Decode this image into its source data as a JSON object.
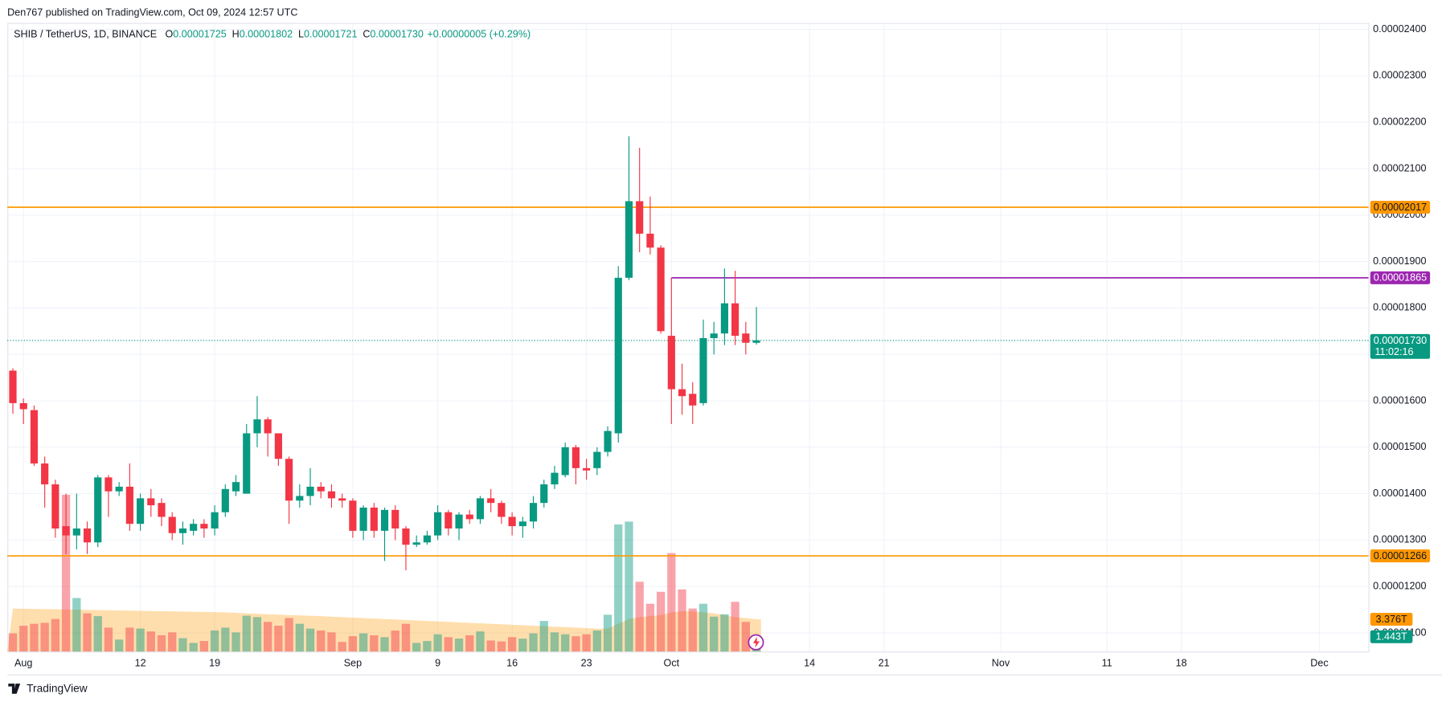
{
  "header": {
    "published": "Den767 published on TradingView.com, Oct 09, 2024 12:57 UTC"
  },
  "footer": {
    "brand": "TradingView"
  },
  "chart_data": {
    "type": "candlestick",
    "symbol": "SHIB / TetherUS, 1D, BINANCE",
    "legend": [
      {
        "key": "O",
        "value": "0.00001725"
      },
      {
        "key": "H",
        "value": "0.00001802"
      },
      {
        "key": "L",
        "value": "0.00001721"
      },
      {
        "key": "C",
        "value": "0.00001730"
      }
    ],
    "change": "+0.00000005 (+0.29%)",
    "up_color": "#089981",
    "down_color": "#f23645",
    "x": [
      "07-31",
      "08-01",
      "08-02",
      "08-03",
      "08-04",
      "08-05",
      "08-06",
      "08-07",
      "08-08",
      "08-09",
      "08-10",
      "08-11",
      "08-12",
      "08-13",
      "08-14",
      "08-15",
      "08-16",
      "08-17",
      "08-18",
      "08-19",
      "08-20",
      "08-21",
      "08-22",
      "08-23",
      "08-24",
      "08-25",
      "08-26",
      "08-27",
      "08-28",
      "08-29",
      "08-30",
      "08-31",
      "09-01",
      "09-02",
      "09-03",
      "09-04",
      "09-05",
      "09-06",
      "09-07",
      "09-08",
      "09-09",
      "09-10",
      "09-11",
      "09-12",
      "09-13",
      "09-14",
      "09-15",
      "09-16",
      "09-17",
      "09-18",
      "09-19",
      "09-20",
      "09-21",
      "09-22",
      "09-23",
      "09-24",
      "09-25",
      "09-26",
      "09-27",
      "09-28",
      "09-29",
      "09-30",
      "10-01",
      "10-02",
      "10-03",
      "10-04",
      "10-05",
      "10-06",
      "10-07",
      "10-08",
      "10-09"
    ],
    "open": [
      1.665e-05,
      1.595e-05,
      1.58e-05,
      1.465e-05,
      1.42e-05,
      1.33e-05,
      1.31e-05,
      1.325e-05,
      1.295e-05,
      1.435e-05,
      1.405e-05,
      1.415e-05,
      1.335e-05,
      1.39e-05,
      1.38e-05,
      1.35e-05,
      1.315e-05,
      1.32e-05,
      1.335e-05,
      1.325e-05,
      1.36e-05,
      1.405e-05,
      1.4e-05,
      1.53e-05,
      1.56e-05,
      1.53e-05,
      1.475e-05,
      1.385e-05,
      1.395e-05,
      1.415e-05,
      1.405e-05,
      1.39e-05,
      1.385e-05,
      1.32e-05,
      1.37e-05,
      1.32e-05,
      1.365e-05,
      1.325e-05,
      1.29e-05,
      1.295e-05,
      1.31e-05,
      1.36e-05,
      1.325e-05,
      1.355e-05,
      1.345e-05,
      1.39e-05,
      1.38e-05,
      1.35e-05,
      1.33e-05,
      1.34e-05,
      1.38e-05,
      1.42e-05,
      1.44e-05,
      1.5e-05,
      1.455e-05,
      1.455e-05,
      1.49e-05,
      1.53e-05,
      1.865e-05,
      2.03e-05,
      1.96e-05,
      1.93e-05,
      1.74e-05,
      1.625e-05,
      1.615e-05,
      1.595e-05,
      1.735e-05,
      1.745e-05,
      1.81e-05,
      1.745e-05,
      1.725e-05
    ],
    "high": [
      1.67e-05,
      1.605e-05,
      1.59e-05,
      1.48e-05,
      1.43e-05,
      1.4e-05,
      1.4e-05,
      1.34e-05,
      1.44e-05,
      1.44e-05,
      1.425e-05,
      1.465e-05,
      1.4e-05,
      1.41e-05,
      1.39e-05,
      1.36e-05,
      1.34e-05,
      1.345e-05,
      1.345e-05,
      1.375e-05,
      1.42e-05,
      1.44e-05,
      1.55e-05,
      1.61e-05,
      1.565e-05,
      1.53e-05,
      1.48e-05,
      1.42e-05,
      1.455e-05,
      1.425e-05,
      1.42e-05,
      1.4e-05,
      1.39e-05,
      1.375e-05,
      1.38e-05,
      1.37e-05,
      1.375e-05,
      1.33e-05,
      1.31e-05,
      1.32e-05,
      1.375e-05,
      1.365e-05,
      1.36e-05,
      1.365e-05,
      1.395e-05,
      1.41e-05,
      1.385e-05,
      1.36e-05,
      1.35e-05,
      1.395e-05,
      1.43e-05,
      1.46e-05,
      1.51e-05,
      1.505e-05,
      1.475e-05,
      1.5e-05,
      1.545e-05,
      1.89e-05,
      2.17e-05,
      2.145e-05,
      2.04e-05,
      1.935e-05,
      1.865e-05,
      1.68e-05,
      1.64e-05,
      1.775e-05,
      1.77e-05,
      1.885e-05,
      1.88e-05,
      1.77e-05,
      1.802e-05
    ],
    "low": [
      1.572e-05,
      1.55e-05,
      1.46e-05,
      1.37e-05,
      1.305e-05,
      1.27e-05,
      1.28e-05,
      1.27e-05,
      1.285e-05,
      1.35e-05,
      1.395e-05,
      1.32e-05,
      1.32e-05,
      1.35e-05,
      1.33e-05,
      1.3e-05,
      1.29e-05,
      1.31e-05,
      1.305e-05,
      1.31e-05,
      1.35e-05,
      1.395e-05,
      1.4e-05,
      1.5e-05,
      1.48e-05,
      1.46e-05,
      1.335e-05,
      1.37e-05,
      1.375e-05,
      1.39e-05,
      1.37e-05,
      1.37e-05,
      1.305e-05,
      1.3e-05,
      1.305e-05,
      1.255e-05,
      1.3e-05,
      1.235e-05,
      1.285e-05,
      1.29e-05,
      1.3e-05,
      1.31e-05,
      1.3e-05,
      1.335e-05,
      1.335e-05,
      1.36e-05,
      1.335e-05,
      1.31e-05,
      1.305e-05,
      1.325e-05,
      1.37e-05,
      1.41e-05,
      1.435e-05,
      1.42e-05,
      1.43e-05,
      1.44e-05,
      1.48e-05,
      1.51e-05,
      1.86e-05,
      1.92e-05,
      1.915e-05,
      1.745e-05,
      1.55e-05,
      1.57e-05,
      1.55e-05,
      1.59e-05,
      1.7e-05,
      1.72e-05,
      1.72e-05,
      1.7e-05,
      1.721e-05
    ],
    "close": [
      1.595e-05,
      1.582e-05,
      1.465e-05,
      1.42e-05,
      1.325e-05,
      1.31e-05,
      1.325e-05,
      1.295e-05,
      1.435e-05,
      1.405e-05,
      1.415e-05,
      1.335e-05,
      1.39e-05,
      1.375e-05,
      1.35e-05,
      1.315e-05,
      1.325e-05,
      1.335e-05,
      1.325e-05,
      1.36e-05,
      1.41e-05,
      1.425e-05,
      1.53e-05,
      1.56e-05,
      1.53e-05,
      1.475e-05,
      1.385e-05,
      1.395e-05,
      1.415e-05,
      1.405e-05,
      1.39e-05,
      1.385e-05,
      1.32e-05,
      1.37e-05,
      1.32e-05,
      1.365e-05,
      1.325e-05,
      1.29e-05,
      1.295e-05,
      1.31e-05,
      1.36e-05,
      1.325e-05,
      1.355e-05,
      1.345e-05,
      1.39e-05,
      1.38e-05,
      1.35e-05,
      1.33e-05,
      1.34e-05,
      1.38e-05,
      1.42e-05,
      1.445e-05,
      1.5e-05,
      1.455e-05,
      1.45e-05,
      1.49e-05,
      1.535e-05,
      1.865e-05,
      2.03e-05,
      1.96e-05,
      1.93e-05,
      1.75e-05,
      1.625e-05,
      1.61e-05,
      1.59e-05,
      1.735e-05,
      1.745e-05,
      1.81e-05,
      1.74e-05,
      1.725e-05,
      1.73e-05
    ],
    "ylim": [
      1.06e-05,
      2.412e-05
    ],
    "yticks": [
      {
        "value": 1.1e-05,
        "label": "0.00001100"
      },
      {
        "value": 1.2e-05,
        "label": "0.00001200"
      },
      {
        "value": 1.3e-05,
        "label": "0.00001300"
      },
      {
        "value": 1.4e-05,
        "label": "0.00001400"
      },
      {
        "value": 1.5e-05,
        "label": "0.00001500"
      },
      {
        "value": 1.6e-05,
        "label": "0.00001600"
      },
      {
        "value": 1.7e-05,
        "label": "0.00001700"
      },
      {
        "value": 1.8e-05,
        "label": "0.00001800"
      },
      {
        "value": 1.9e-05,
        "label": "0.00001900"
      },
      {
        "value": 2e-05,
        "label": "0.00002000"
      },
      {
        "value": 2.1e-05,
        "label": "0.00002100"
      },
      {
        "value": 2.2e-05,
        "label": "0.00002200"
      },
      {
        "value": 2.3e-05,
        "label": "0.00002300"
      },
      {
        "value": 2.4e-05,
        "label": "0.00002400"
      }
    ],
    "xticks": [
      {
        "value": "08-01",
        "label": "Aug"
      },
      {
        "value": "08-12",
        "label": "12"
      },
      {
        "value": "08-19",
        "label": "19"
      },
      {
        "value": "09-01",
        "label": "Sep"
      },
      {
        "value": "09-09",
        "label": "9"
      },
      {
        "value": "09-16",
        "label": "16"
      },
      {
        "value": "09-23",
        "label": "23"
      },
      {
        "value": "10-01",
        "label": "Oct"
      },
      {
        "value": "10-14",
        "label": "14"
      },
      {
        "value": "10-21",
        "label": "21"
      },
      {
        "value": "11-01",
        "label": "Nov"
      },
      {
        "value": "11-11",
        "label": "11"
      },
      {
        "value": "11-18",
        "label": "18"
      },
      {
        "value": "12-01",
        "label": "Dec"
      }
    ],
    "grid": true,
    "hlines": [
      {
        "value": 2.017e-05,
        "label": "0.00002017",
        "color": "#ff9800"
      },
      {
        "value": 1.865e-05,
        "label": "0.00001865",
        "color": "#9c27b0",
        "start": "10-01"
      },
      {
        "value": 1.266e-05,
        "label": "0.00001266",
        "color": "#ff9800"
      }
    ],
    "last_price": {
      "value": 1.73e-05,
      "label": "0.00001730",
      "countdown": "11:02:16",
      "color": "#089981"
    },
    "y2lim": [
      0,
      65.7
    ],
    "volume": {
      "values": [
        1.9,
        2.7,
        2.9,
        3.0,
        3.4,
        16.4,
        5.6,
        4.0,
        3.7,
        2.5,
        1.25,
        2.5,
        2.4,
        2.1,
        1.7,
        2.0,
        1.4,
        0.9,
        1.1,
        2.2,
        2.5,
        2.0,
        3.75,
        3.6,
        3.1,
        2.7,
        3.5,
        2.9,
        2.4,
        2.2,
        2.0,
        1.0,
        1.6,
        1.9,
        1.7,
        1.5,
        2.2,
        2.9,
        0.9,
        1.1,
        1.8,
        1.5,
        1.35,
        1.7,
        2.1,
        1.15,
        1.05,
        1.5,
        1.35,
        1.9,
        3.2,
        2.0,
        1.8,
        1.6,
        1.8,
        2.2,
        3.85,
        13.3,
        13.6,
        7.3,
        5.0,
        6.25,
        10.3,
        6.5,
        4.5,
        5.0,
        3.65,
        3.9,
        5.2,
        3.1,
        1.443
      ],
      "last_label": "1.443T",
      "ma_values": [
        4.5,
        4.48,
        4.46,
        4.44,
        4.42,
        4.4,
        4.38,
        4.36,
        4.34,
        4.32,
        4.3,
        4.28,
        4.26,
        4.24,
        4.22,
        4.2,
        4.18,
        4.16,
        4.14,
        4.12,
        4.1,
        4.05,
        4.0,
        3.95,
        3.9,
        3.86,
        3.82,
        3.78,
        3.74,
        3.7,
        3.65,
        3.6,
        3.55,
        3.5,
        3.45,
        3.4,
        3.35,
        3.3,
        3.25,
        3.2,
        3.15,
        3.1,
        3.05,
        3.0,
        2.95,
        2.9,
        2.85,
        2.8,
        2.75,
        2.7,
        2.65,
        2.6,
        2.55,
        2.5,
        2.45,
        2.4,
        2.4,
        2.9,
        3.4,
        3.6,
        3.7,
        3.8,
        4.1,
        4.2,
        4.2,
        4.1,
        4.0,
        3.8,
        3.6,
        3.5,
        3.376
      ],
      "ma_label": "3.376T",
      "ma_color": "#ff9800"
    }
  }
}
